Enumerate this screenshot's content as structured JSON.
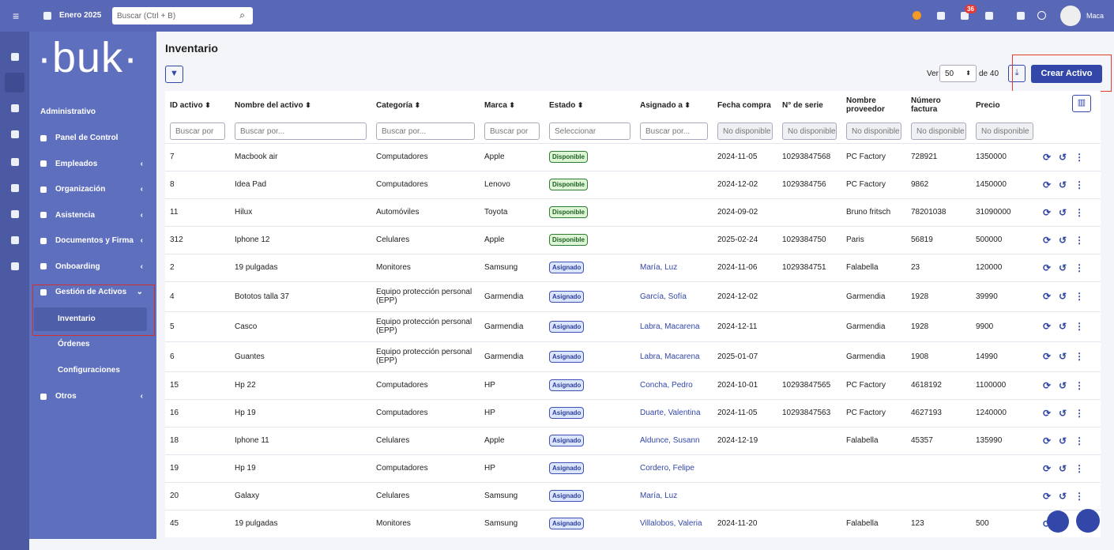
{
  "topbar": {
    "period": "Enero 2025",
    "search_placeholder": "Buscar (Ctrl + B)",
    "notifications": "36",
    "user": "Maca"
  },
  "sidebar": {
    "logo": "buk",
    "section": "Administrativo",
    "items": [
      {
        "label": "Panel de Control"
      },
      {
        "label": "Empleados",
        "arrow": "‹"
      },
      {
        "label": "Organización",
        "arrow": "‹"
      },
      {
        "label": "Asistencia",
        "arrow": "‹"
      },
      {
        "label": "Documentos y Firma",
        "arrow": "‹"
      },
      {
        "label": "Onboarding",
        "arrow": "‹"
      },
      {
        "label": "Gestión de Activos",
        "arrow": "⌄",
        "children": [
          "Inventario",
          "Órdenes",
          "Configuraciones"
        ]
      },
      {
        "label": "Otros",
        "arrow": "‹"
      }
    ]
  },
  "page": {
    "title": "Inventario",
    "per_page_label": "Ver",
    "per_page": "50",
    "total": "de 40",
    "create_button": "Crear Activo"
  },
  "table": {
    "columns": [
      "ID activo",
      "Nombre del activo",
      "Categoría",
      "Marca",
      "Estado",
      "Asignado a",
      "Fecha compra",
      "N° de serie",
      "Nombre proveedor",
      "Número factura",
      "Precio"
    ],
    "filters": [
      "Buscar por",
      "Buscar por...",
      "Buscar por...",
      "Buscar por",
      "Seleccionar",
      "Buscar por...",
      "No disponible",
      "No disponible",
      "No disponible",
      "No disponible",
      "No disponible"
    ],
    "rows": [
      [
        "7",
        "Macbook air",
        "Computadores",
        "Apple",
        "Disponible",
        null,
        "2024-11-05",
        "10293847568",
        "PC Factory",
        "728921",
        "1350000"
      ],
      [
        "8",
        "Idea Pad",
        "Computadores",
        "Lenovo",
        "Disponible",
        null,
        "2024-12-02",
        "1029384756",
        "PC Factory",
        "9862",
        "1450000"
      ],
      [
        "11",
        "Hilux",
        "Automóviles",
        "Toyota",
        "Disponible",
        null,
        "2024-09-02",
        null,
        "Bruno fritsch",
        "78201038",
        "31090000"
      ],
      [
        "312",
        "Iphone 12",
        "Celulares",
        "Apple",
        "Disponible",
        null,
        "2025-02-24",
        "1029384750",
        "Paris",
        "56819",
        "500000"
      ],
      [
        "2",
        "19 pulgadas",
        "Monitores",
        "Samsung",
        "Asignado",
        "María, Luz",
        "2024-11-06",
        "1029384751",
        "Falabella",
        "23",
        "120000"
      ],
      [
        "4",
        "Bototos talla 37",
        "Equipo protección personal (EPP)",
        "Garmendia",
        "Asignado",
        "García, Sofía",
        "2024-12-02",
        null,
        "Garmendia",
        "1928",
        "39990"
      ],
      [
        "5",
        "Casco",
        "Equipo protección personal (EPP)",
        "Garmendia",
        "Asignado",
        "Labra, Macarena",
        "2024-12-11",
        null,
        "Garmendia",
        "1928",
        "9900"
      ],
      [
        "6",
        "Guantes",
        "Equipo protección personal (EPP)",
        "Garmendia",
        "Asignado",
        "Labra, Macarena",
        "2025-01-07",
        null,
        "Garmendia",
        "1908",
        "14990"
      ],
      [
        "15",
        "Hp 22",
        "Computadores",
        "HP",
        "Asignado",
        "Concha, Pedro",
        "2024-10-01",
        "10293847565",
        "PC Factory",
        "4618192",
        "1100000"
      ],
      [
        "16",
        "Hp 19",
        "Computadores",
        "HP",
        "Asignado",
        "Duarte, Valentina",
        "2024-11-05",
        "10293847563",
        "PC Factory",
        "4627193",
        "1240000"
      ],
      [
        "18",
        "Iphone 11",
        "Celulares",
        "Apple",
        "Asignado",
        "Aldunce, Susann",
        "2024-12-19",
        null,
        "Falabella",
        "45357",
        "135990"
      ],
      [
        "19",
        "Hp 19",
        "Computadores",
        "HP",
        "Asignado",
        "Cordero, Felipe",
        null,
        null,
        null,
        null,
        null
      ],
      [
        "20",
        "Galaxy",
        "Celulares",
        "Samsung",
        "Asignado",
        "María, Luz",
        null,
        null,
        null,
        null,
        null
      ],
      [
        "45",
        "19 pulgadas",
        "Monitores",
        "Samsung",
        "Asignado",
        "Villalobos, Valeria",
        "2024-11-20",
        null,
        "Falabella",
        "123",
        "500"
      ]
    ]
  }
}
